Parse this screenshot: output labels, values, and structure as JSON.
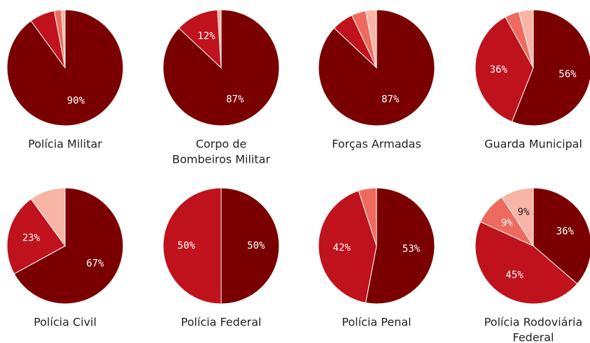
{
  "chart_data": [
    {
      "type": "pie",
      "title": [
        "Polícia Militar"
      ],
      "values": [
        90,
        7,
        2,
        1
      ],
      "value_labels": [
        "90%",
        null,
        null,
        null
      ],
      "colors": [
        "#7a0000",
        "#c0121c",
        "#ef6a5e",
        "#f8b4a4"
      ]
    },
    {
      "type": "pie",
      "title": [
        "Corpo de",
        "Bombeiros Militar"
      ],
      "values": [
        87,
        12,
        0,
        1
      ],
      "value_labels": [
        "87%",
        "12%",
        null,
        null
      ],
      "colors": [
        "#7a0000",
        "#c0121c",
        "#ef6a5e",
        "#f8b4a4"
      ]
    },
    {
      "type": "pie",
      "title": [
        "Forças Armadas"
      ],
      "values": [
        87,
        6,
        4,
        3
      ],
      "value_labels": [
        "87%",
        null,
        null,
        null
      ],
      "colors": [
        "#7a0000",
        "#c0121c",
        "#ef6a5e",
        "#f8b4a4"
      ]
    },
    {
      "type": "pie",
      "title": [
        "Guarda Municipal"
      ],
      "values": [
        56,
        36,
        4,
        4
      ],
      "value_labels": [
        "56%",
        "36%",
        null,
        null
      ],
      "colors": [
        "#7a0000",
        "#c0121c",
        "#ef6a5e",
        "#f8b4a4"
      ]
    },
    {
      "type": "pie",
      "title": [
        "Polícia Civil"
      ],
      "values": [
        67,
        23,
        0,
        10
      ],
      "value_labels": [
        "67%",
        "23%",
        null,
        null
      ],
      "colors": [
        "#7a0000",
        "#c0121c",
        "#ef6a5e",
        "#f8b4a4"
      ]
    },
    {
      "type": "pie",
      "title": [
        "Polícia Federal"
      ],
      "values": [
        50,
        50
      ],
      "value_labels": [
        "50%",
        "50%"
      ],
      "colors": [
        "#7a0000",
        "#c0121c"
      ]
    },
    {
      "type": "pie",
      "title": [
        "Polícia Penal"
      ],
      "values": [
        53,
        42,
        5,
        0
      ],
      "value_labels": [
        "53%",
        "42%",
        null,
        null
      ],
      "colors": [
        "#7a0000",
        "#c0121c",
        "#ef6a5e",
        "#f8b4a4"
      ]
    },
    {
      "type": "pie",
      "title": [
        "Polícia Rodoviária",
        "Federal"
      ],
      "values": [
        36,
        45,
        9,
        9
      ],
      "value_labels": [
        "36%",
        "45%",
        "9%",
        "9%"
      ],
      "colors": [
        "#7a0000",
        "#c0121c",
        "#ef6a5e",
        "#f8b4a4"
      ]
    }
  ]
}
